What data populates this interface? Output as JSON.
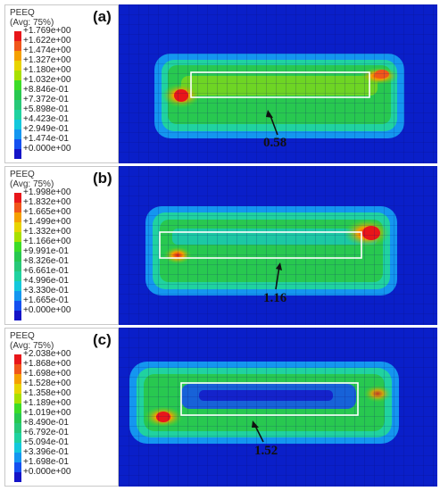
{
  "panels": [
    {
      "label": "(a)",
      "legend_title": "PEEQ",
      "legend_avg": "(Avg: 75%)",
      "values": [
        "+1.769e+00",
        "+1.622e+00",
        "+1.474e+00",
        "+1.327e+00",
        "+1.180e+00",
        "+1.032e+00",
        "+8.846e-01",
        "+7.372e-01",
        "+5.898e-01",
        "+4.423e-01",
        "+2.949e-01",
        "+1.474e-01",
        "+0.000e+00"
      ],
      "annotation": "0.58"
    },
    {
      "label": "(b)",
      "legend_title": "PEEQ",
      "legend_avg": "(Avg: 75%)",
      "values": [
        "+1.998e+00",
        "+1.832e+00",
        "+1.665e+00",
        "+1.499e+00",
        "+1.332e+00",
        "+1.166e+00",
        "+9.991e-01",
        "+8.326e-01",
        "+6.661e-01",
        "+4.996e-01",
        "+3.330e-01",
        "+1.665e-01",
        "+0.000e+00"
      ],
      "annotation": "1.16"
    },
    {
      "label": "(c)",
      "legend_title": "PEEQ",
      "legend_avg": "(Avg: 75%)",
      "values": [
        "+2.038e+00",
        "+1.868e+00",
        "+1.698e+00",
        "+1.528e+00",
        "+1.358e+00",
        "+1.189e+00",
        "+1.019e+00",
        "+8.490e-01",
        "+6.792e-01",
        "+5.094e-01",
        "+3.396e-01",
        "+1.698e-01",
        "+0.000e+00"
      ],
      "annotation": "1.52"
    }
  ],
  "colormap": [
    "#e8161a",
    "#f0561a",
    "#f5a000",
    "#e8d400",
    "#a8e000",
    "#3cdc28",
    "#28c850",
    "#28c878",
    "#20d2a0",
    "#14c8dc",
    "#1496f0",
    "#1450f0",
    "#1414c8"
  ]
}
